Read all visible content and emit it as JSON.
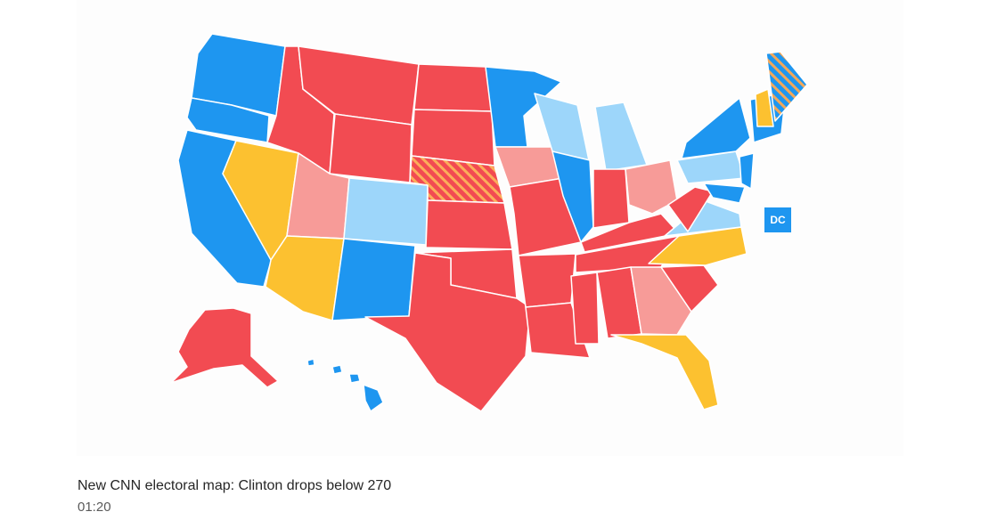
{
  "video": {
    "map": {
      "dc_label": "DC"
    },
    "caption": "New CNN electoral map: Clinton drops below 270",
    "duration": "01:20"
  }
}
